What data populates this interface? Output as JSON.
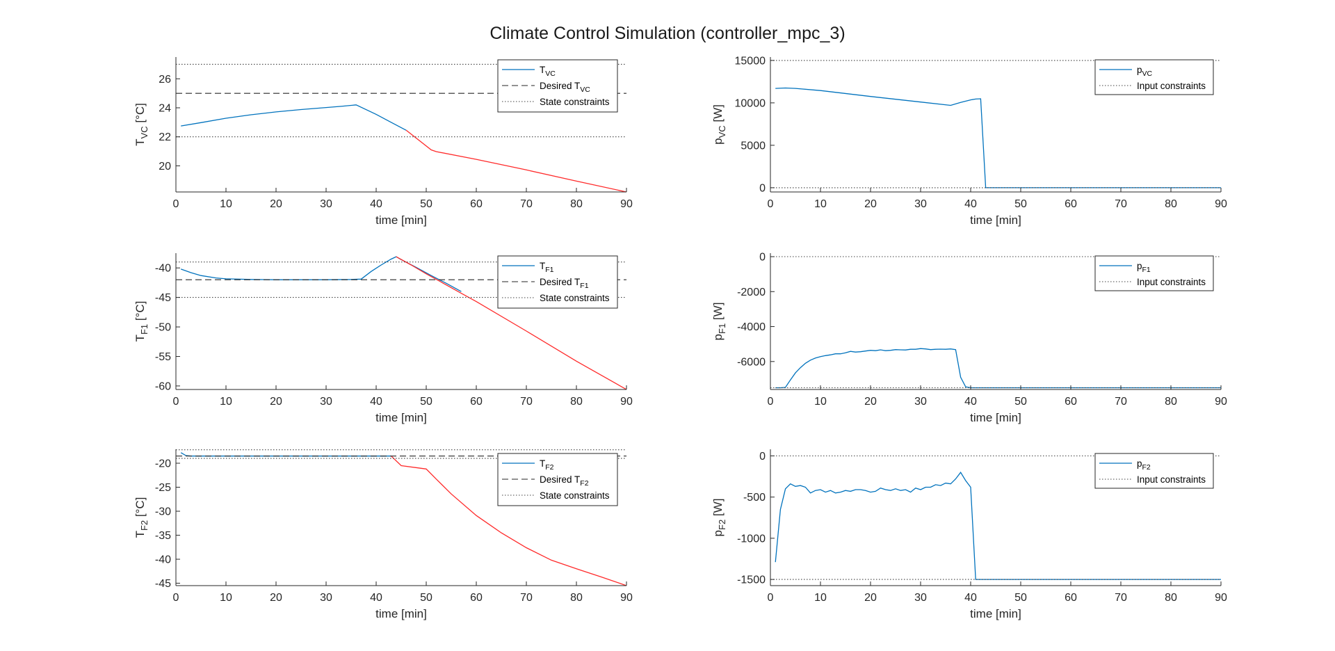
{
  "figure": {
    "title": "Climate Control Simulation (controller_mpc_3)",
    "colors": {
      "nominal": "#0072BD",
      "violation": "#FF2A2A",
      "reference": "#262626",
      "constraint": "#404040",
      "axis": "#262626"
    }
  },
  "chart_data": [
    {
      "id": "tvc",
      "type": "line",
      "xlabel": "time [min]",
      "ylabel": "T",
      "ylabel_sub": "VC",
      "ylabel_unit": " [°C]",
      "xlim": [
        0,
        90
      ],
      "ylim": [
        18.2,
        27.5
      ],
      "xticks": [
        0,
        10,
        20,
        30,
        40,
        50,
        60,
        70,
        80,
        90
      ],
      "yticks": [
        20,
        22,
        24,
        26
      ],
      "series": [
        {
          "name": "T",
          "name_sub": "VC",
          "style": "solid",
          "color": "#0072BD",
          "x": [
            1,
            5,
            10,
            15,
            20,
            25,
            30,
            33,
            36,
            40,
            43,
            46
          ],
          "y": [
            22.75,
            22.98,
            23.28,
            23.52,
            23.72,
            23.88,
            24.02,
            24.1,
            24.2,
            23.55,
            23.0,
            22.45
          ]
        },
        {
          "style": "solid",
          "color": "#FF2A2A",
          "legend": false,
          "x": [
            46,
            51,
            52,
            60,
            70,
            80,
            90
          ],
          "y": [
            22.45,
            21.1,
            20.98,
            20.45,
            19.72,
            18.95,
            18.2
          ]
        },
        {
          "name": "Desired T",
          "name_sub": "VC",
          "style": "dashed",
          "color": "#262626",
          "x": [
            0,
            90
          ],
          "y": [
            25,
            25
          ]
        },
        {
          "name": "State constraints",
          "style": "dotted",
          "color": "#404040",
          "x": [
            0,
            90
          ],
          "y": [
            27,
            27
          ]
        },
        {
          "style": "dotted",
          "color": "#404040",
          "legend": false,
          "x": [
            0,
            90
          ],
          "y": [
            22,
            22
          ]
        }
      ]
    },
    {
      "id": "pvc",
      "type": "line",
      "xlabel": "time [min]",
      "ylabel": "p",
      "ylabel_sub": "VC",
      "ylabel_unit": " [W]",
      "xlim": [
        0,
        90
      ],
      "ylim": [
        -500,
        15400
      ],
      "xticks": [
        0,
        10,
        20,
        30,
        40,
        50,
        60,
        70,
        80,
        90
      ],
      "yticks": [
        0,
        5000,
        10000,
        15000
      ],
      "series": [
        {
          "name": "p",
          "name_sub": "VC",
          "style": "solid",
          "color": "#0072BD",
          "x": [
            1,
            3,
            5,
            10,
            20,
            30,
            36,
            38,
            40,
            41,
            42,
            43,
            90
          ],
          "y": [
            11700,
            11750,
            11700,
            11450,
            10750,
            10100,
            9700,
            10050,
            10350,
            10450,
            10480,
            0,
            0
          ]
        },
        {
          "name": "Input constraints",
          "style": "dotted",
          "color": "#404040",
          "x": [
            0,
            90
          ],
          "y": [
            15000,
            15000
          ]
        },
        {
          "style": "dotted",
          "color": "#404040",
          "legend": false,
          "x": [
            0,
            90
          ],
          "y": [
            0,
            0
          ]
        }
      ]
    },
    {
      "id": "tf1",
      "type": "line",
      "xlabel": "time [min]",
      "ylabel": "T",
      "ylabel_sub": "F1",
      "ylabel_unit": " [°C]",
      "xlim": [
        0,
        90
      ],
      "ylim": [
        -60.6,
        -37.5
      ],
      "xticks": [
        0,
        10,
        20,
        30,
        40,
        50,
        60,
        70,
        80,
        90
      ],
      "yticks": [
        -60,
        -55,
        -50,
        -45,
        -40
      ],
      "series": [
        {
          "name": "T",
          "name_sub": "F1",
          "style": "solid",
          "color": "#0072BD",
          "x": [
            1,
            3,
            5,
            8,
            10,
            15,
            20,
            25,
            30,
            35,
            37,
            39,
            41,
            43,
            44,
            45,
            48,
            51,
            54,
            57
          ],
          "y": [
            -40.2,
            -40.8,
            -41.3,
            -41.7,
            -41.85,
            -41.95,
            -42.0,
            -42.0,
            -42.0,
            -41.95,
            -41.9,
            -40.6,
            -39.5,
            -38.5,
            -38.1,
            -38.6,
            -39.9,
            -41.3,
            -42.6,
            -44.0
          ]
        },
        {
          "style": "solid",
          "color": "#FF2A2A",
          "legend": false,
          "x": [
            44,
            47,
            50,
            53,
            57,
            60,
            70,
            80,
            90
          ],
          "y": [
            -38.1,
            -39.5,
            -41.0,
            -42.4,
            -44.3,
            -45.7,
            -50.7,
            -55.8,
            -60.6
          ]
        },
        {
          "name": "Desired T",
          "name_sub": "F1",
          "style": "dashed",
          "color": "#262626",
          "x": [
            0,
            90
          ],
          "y": [
            -42,
            -42
          ]
        },
        {
          "name": "State constraints",
          "style": "dotted",
          "color": "#404040",
          "x": [
            0,
            90
          ],
          "y": [
            -39,
            -39
          ]
        },
        {
          "style": "dotted",
          "color": "#404040",
          "legend": false,
          "x": [
            0,
            90
          ],
          "y": [
            -45,
            -45
          ]
        }
      ]
    },
    {
      "id": "pf1",
      "type": "line",
      "xlabel": "time [min]",
      "ylabel": "p",
      "ylabel_sub": "F1",
      "ylabel_unit": " [W]",
      "xlim": [
        0,
        90
      ],
      "ylim": [
        -7600,
        200
      ],
      "xticks": [
        0,
        10,
        20,
        30,
        40,
        50,
        60,
        70,
        80,
        90
      ],
      "yticks": [
        -6000,
        -4000,
        -2000,
        0
      ],
      "series": [
        {
          "name": "p",
          "name_sub": "F1",
          "style": "solid",
          "color": "#0072BD",
          "x": [
            1,
            2,
            3,
            4,
            5,
            6,
            7,
            8,
            9,
            10,
            11,
            12,
            13,
            14,
            15,
            16,
            17,
            18,
            19,
            20,
            21,
            22,
            23,
            24,
            25,
            26,
            27,
            28,
            29,
            30,
            31,
            32,
            33,
            34,
            35,
            36,
            37,
            38,
            39,
            40,
            90
          ],
          "y": [
            -7500,
            -7500,
            -7480,
            -7050,
            -6650,
            -6350,
            -6100,
            -5920,
            -5800,
            -5720,
            -5660,
            -5620,
            -5560,
            -5560,
            -5500,
            -5420,
            -5460,
            -5440,
            -5400,
            -5360,
            -5380,
            -5330,
            -5380,
            -5360,
            -5320,
            -5330,
            -5340,
            -5300,
            -5300,
            -5260,
            -5280,
            -5320,
            -5300,
            -5290,
            -5300,
            -5280,
            -5320,
            -6900,
            -7450,
            -7500,
            -7500
          ]
        },
        {
          "name": "Input constraints",
          "style": "dotted",
          "color": "#404040",
          "x": [
            0,
            90
          ],
          "y": [
            0,
            0
          ]
        },
        {
          "style": "dotted",
          "color": "#404040",
          "legend": false,
          "x": [
            0,
            90
          ],
          "y": [
            -7500,
            -7500
          ]
        }
      ]
    },
    {
      "id": "tf2",
      "type": "line",
      "xlabel": "time [min]",
      "ylabel": "T",
      "ylabel_sub": "F2",
      "ylabel_unit": " [°C]",
      "xlim": [
        0,
        90
      ],
      "ylim": [
        -45.5,
        -17.1
      ],
      "xticks": [
        0,
        10,
        20,
        30,
        40,
        50,
        60,
        70,
        80,
        90
      ],
      "yticks": [
        -45,
        -40,
        -35,
        -30,
        -25,
        -20
      ],
      "series": [
        {
          "name": "T",
          "name_sub": "F2",
          "style": "solid",
          "color": "#0072BD",
          "x": [
            1,
            2,
            3,
            10,
            20,
            30,
            40,
            43
          ],
          "y": [
            -17.8,
            -18.4,
            -18.5,
            -18.5,
            -18.5,
            -18.5,
            -18.5,
            -18.5
          ]
        },
        {
          "style": "solid",
          "color": "#FF2A2A",
          "legend": false,
          "x": [
            43,
            45,
            50,
            52,
            55,
            60,
            65,
            70,
            75,
            80,
            85,
            90
          ],
          "y": [
            -18.5,
            -20.5,
            -21.2,
            -23.3,
            -26.4,
            -30.9,
            -34.5,
            -37.6,
            -40.2,
            -42.0,
            -43.7,
            -45.5
          ]
        },
        {
          "name": "Desired T",
          "name_sub": "F2",
          "style": "dashed",
          "color": "#262626",
          "x": [
            0,
            90
          ],
          "y": [
            -18.5,
            -18.5
          ]
        },
        {
          "name": "State constraints",
          "style": "dotted",
          "color": "#404040",
          "x": [
            0,
            90
          ],
          "y": [
            -17.2,
            -17.2
          ]
        },
        {
          "style": "dotted",
          "color": "#404040",
          "legend": false,
          "x": [
            0,
            90
          ],
          "y": [
            -19.0,
            -19.0
          ]
        }
      ]
    },
    {
      "id": "pf2",
      "type": "line",
      "xlabel": "time [min]",
      "ylabel": "p",
      "ylabel_sub": "F2",
      "ylabel_unit": " [W]",
      "xlim": [
        0,
        90
      ],
      "ylim": [
        -1575,
        80
      ],
      "xticks": [
        0,
        10,
        20,
        30,
        40,
        50,
        60,
        70,
        80,
        90
      ],
      "yticks": [
        -1500,
        -1000,
        -500,
        0
      ],
      "series": [
        {
          "name": "p",
          "name_sub": "F2",
          "style": "solid",
          "color": "#0072BD",
          "x": [
            1,
            2,
            3,
            4,
            5,
            6,
            7,
            8,
            9,
            10,
            11,
            12,
            13,
            14,
            15,
            16,
            17,
            18,
            19,
            20,
            21,
            22,
            23,
            24,
            25,
            26,
            27,
            28,
            29,
            30,
            31,
            32,
            33,
            34,
            35,
            36,
            37,
            38,
            39,
            40,
            41,
            42,
            43,
            90
          ],
          "y": [
            -1290,
            -650,
            -400,
            -340,
            -370,
            -360,
            -380,
            -450,
            -420,
            -410,
            -440,
            -420,
            -450,
            -440,
            -420,
            -430,
            -410,
            -410,
            -420,
            -440,
            -430,
            -390,
            -410,
            -420,
            -400,
            -420,
            -410,
            -440,
            -390,
            -410,
            -380,
            -380,
            -350,
            -360,
            -330,
            -340,
            -280,
            -200,
            -300,
            -380,
            -1500,
            -1500,
            -1500,
            -1500
          ]
        },
        {
          "name": "Input constraints",
          "style": "dotted",
          "color": "#404040",
          "x": [
            0,
            90
          ],
          "y": [
            0,
            0
          ]
        },
        {
          "style": "dotted",
          "color": "#404040",
          "legend": false,
          "x": [
            0,
            90
          ],
          "y": [
            -1500,
            -1500
          ]
        }
      ]
    }
  ]
}
